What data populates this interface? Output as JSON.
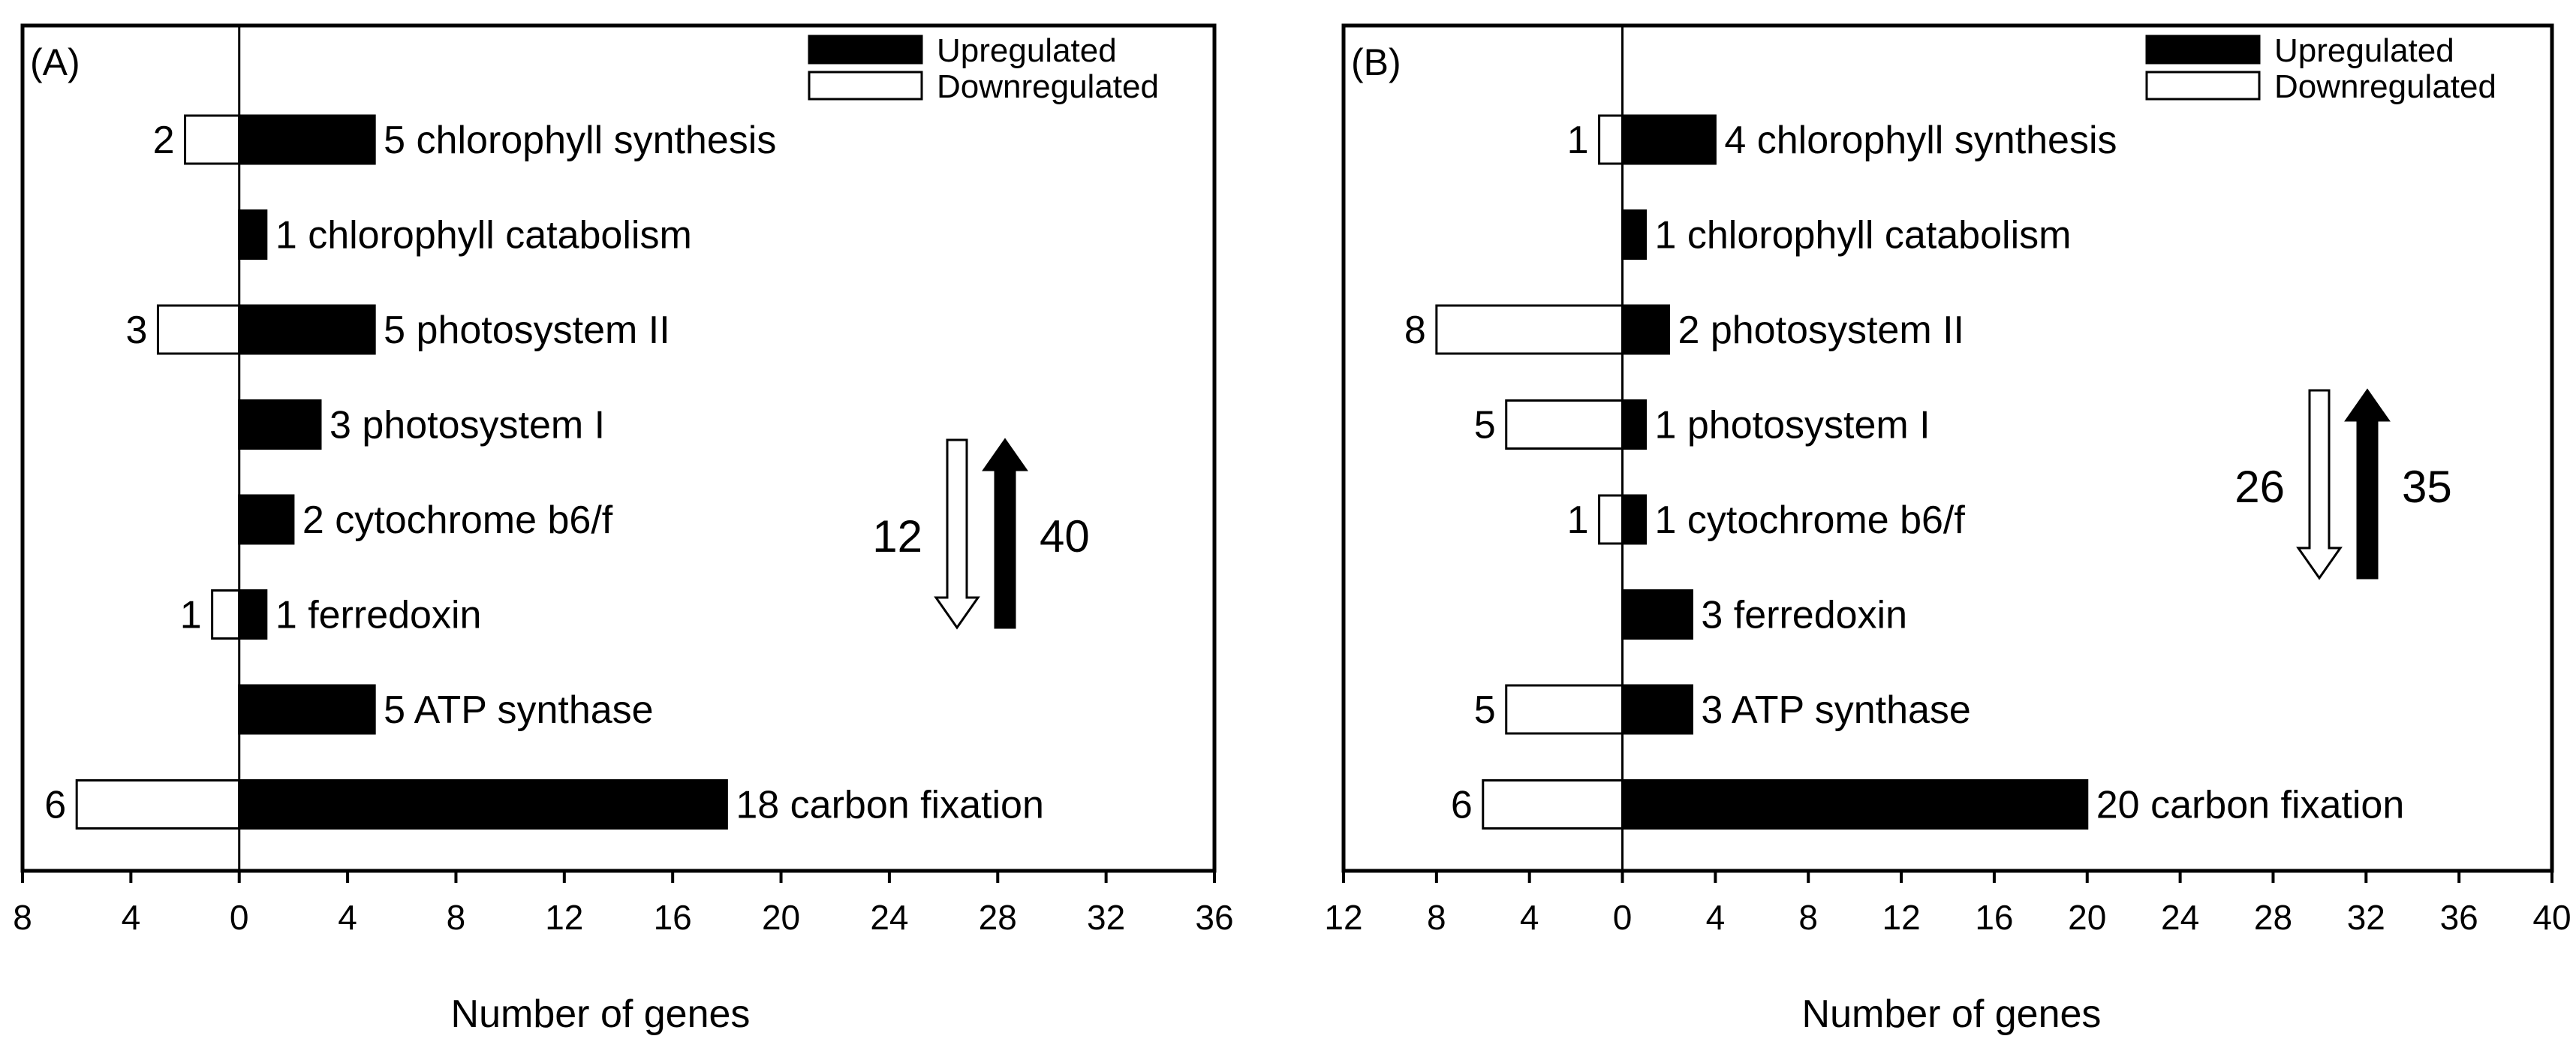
{
  "chart_data": [
    {
      "type": "bar",
      "panel_label": "(A)",
      "orientation": "horizontal",
      "categories": [
        "chlorophyll synthesis",
        "chlorophyll catabolism",
        "photosystem II",
        "photosystem I",
        "cytochrome b6/f",
        "ferredoxin",
        "ATP synthase",
        "carbon fixation"
      ],
      "series": [
        {
          "name": "Upregulated",
          "values": [
            5,
            1,
            5,
            3,
            2,
            1,
            5,
            18
          ],
          "color": "#000000"
        },
        {
          "name": "Downregulated",
          "values": [
            2,
            0,
            3,
            0,
            0,
            1,
            0,
            6
          ],
          "color": "#ffffff"
        }
      ],
      "xlabel": "Number of genes",
      "xlim": [
        -8,
        36
      ],
      "xticks": [
        -8,
        -4,
        0,
        4,
        8,
        12,
        16,
        20,
        24,
        28,
        32,
        36
      ],
      "xtick_labels": [
        "8",
        "4",
        "0",
        "4",
        "8",
        "12",
        "16",
        "20",
        "24",
        "28",
        "32",
        "36"
      ],
      "totals": {
        "down": 12,
        "up": 40,
        "down_label": "12",
        "up_label": "40"
      },
      "legend": "top-right",
      "grid": false
    },
    {
      "type": "bar",
      "panel_label": "(B)",
      "orientation": "horizontal",
      "categories": [
        "chlorophyll synthesis",
        "chlorophyll catabolism",
        "photosystem II",
        "photosystem I",
        "cytochrome b6/f",
        "ferredoxin",
        "ATP synthase",
        "carbon fixation"
      ],
      "series": [
        {
          "name": "Upregulated",
          "values": [
            4,
            1,
            2,
            1,
            1,
            3,
            3,
            20
          ],
          "color": "#000000"
        },
        {
          "name": "Downregulated",
          "values": [
            1,
            0,
            8,
            5,
            1,
            0,
            5,
            6
          ],
          "color": "#ffffff"
        }
      ],
      "xlabel": "Number of genes",
      "xlim": [
        -12,
        40
      ],
      "xticks": [
        -12,
        -8,
        -4,
        0,
        4,
        8,
        12,
        16,
        20,
        24,
        28,
        32,
        36,
        40
      ],
      "xtick_labels": [
        "12",
        "8",
        "4",
        "0",
        "4",
        "8",
        "12",
        "16",
        "20",
        "24",
        "28",
        "32",
        "36",
        "40"
      ],
      "totals": {
        "down": 26,
        "up": 35,
        "down_label": "26",
        "up_label": "35"
      },
      "legend": "top-right",
      "grid": false
    }
  ]
}
